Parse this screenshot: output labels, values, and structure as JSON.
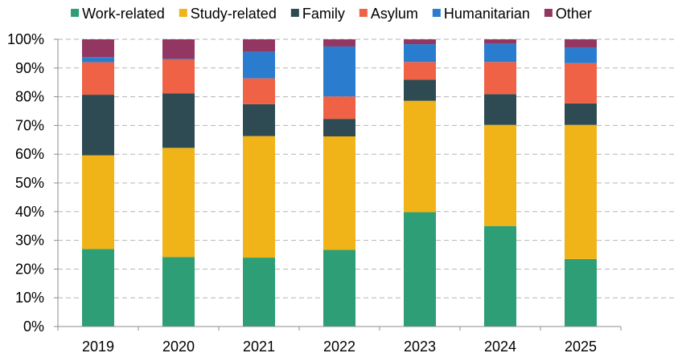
{
  "chart_data": {
    "type": "bar",
    "stacked": true,
    "categories": [
      "2019",
      "2020",
      "2021",
      "2022",
      "2023",
      "2024",
      "2025"
    ],
    "series": [
      {
        "name": "Work-related",
        "color": "#2e9e76",
        "values": [
          27.0,
          24.2,
          24.0,
          26.7,
          39.8,
          35.0,
          23.5
        ]
      },
      {
        "name": "Study-related",
        "color": "#f1b418",
        "values": [
          32.6,
          38.0,
          42.3,
          39.5,
          38.8,
          35.2,
          46.7
        ]
      },
      {
        "name": "Family",
        "color": "#2e4b53",
        "values": [
          21.1,
          19.0,
          11.1,
          6.1,
          7.3,
          10.7,
          7.5
        ]
      },
      {
        "name": "Asylum",
        "color": "#ef6245",
        "values": [
          11.3,
          11.7,
          9.0,
          7.8,
          6.2,
          11.2,
          14.0
        ]
      },
      {
        "name": "Humanitarian",
        "color": "#2a7dce",
        "values": [
          1.8,
          0.3,
          9.2,
          17.4,
          6.2,
          6.3,
          5.4
        ]
      },
      {
        "name": "Other",
        "color": "#933762",
        "values": [
          6.2,
          6.8,
          4.4,
          2.5,
          1.7,
          1.6,
          2.9
        ]
      }
    ],
    "title": "",
    "xlabel": "",
    "ylabel": "",
    "ylim": [
      0,
      100
    ],
    "yticks": [
      "0%",
      "10%",
      "20%",
      "30%",
      "40%",
      "50%",
      "60%",
      "70%",
      "80%",
      "90%",
      "100%"
    ],
    "grid": "horizontal dashed",
    "legend": "top"
  }
}
